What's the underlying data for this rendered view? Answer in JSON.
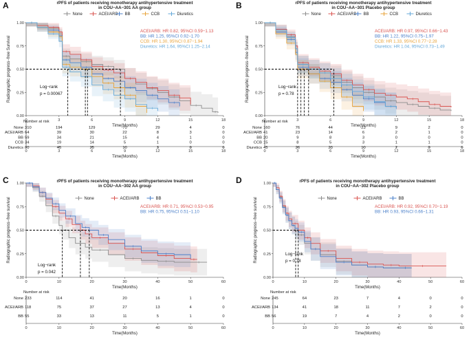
{
  "colors": {
    "None": "#8c8c8c",
    "ACEI/ARB": "#d9534f",
    "BB": "#4a7fc9",
    "CCB": "#e8a33a",
    "Diuretics": "#63a7d8"
  },
  "chart_data": [
    {
      "panel": "A",
      "type": "line",
      "title": "rPFS of patients receiving monotherapy antihypertensive treatment",
      "subtitle": "in COU−AA−301 AA group",
      "xlabel": "Time(Months)",
      "ylabel": "Radiographic progress−free Survival",
      "xlim": [
        0,
        18
      ],
      "xticks": [
        0,
        3,
        6,
        9,
        12,
        15,
        18
      ],
      "ylim": [
        0,
        1
      ],
      "yticks": [
        0.0,
        0.25,
        0.5,
        0.75,
        1.0
      ],
      "legend": [
        "None",
        "ACEI/ARB",
        "BB",
        "CCB",
        "Diuretics"
      ],
      "hr_text": [
        "ACEI/ARB: HR 0.82, 95%CI 0.59−1.13",
        "BB: HR 1.25, 95%CI 0.92−1.70",
        "CCB: HR 1.30, 95%CI 0.87−1.94",
        "Diuretics: HR 1.64, 95%CI 1.25−2.14"
      ],
      "logrank": [
        "Log−rank",
        "p = 0.00067"
      ],
      "medians": [
        3.8,
        5.4,
        5.6,
        8.6
      ],
      "series": [
        {
          "name": "None",
          "x": [
            0,
            1,
            2,
            3,
            3.3,
            4,
            5,
            6,
            7,
            8,
            9,
            10,
            11,
            12,
            13,
            14,
            15,
            16,
            17,
            17.5
          ],
          "y": [
            1,
            0.97,
            0.94,
            0.88,
            0.64,
            0.61,
            0.58,
            0.55,
            0.53,
            0.5,
            0.4,
            0.34,
            0.29,
            0.25,
            0.2,
            0.16,
            0.11,
            0.08,
            0.04,
            0.03
          ]
        },
        {
          "name": "ACEI/ARB",
          "x": [
            0,
            1,
            2,
            3,
            3.3,
            4,
            5,
            6,
            7,
            8,
            9,
            10,
            11,
            12,
            13,
            14,
            15
          ],
          "y": [
            1,
            0.97,
            0.95,
            0.9,
            0.69,
            0.66,
            0.6,
            0.53,
            0.49,
            0.46,
            0.4,
            0.36,
            0.3,
            0.27,
            0.22,
            0.19,
            0.12
          ]
        },
        {
          "name": "BB",
          "x": [
            0,
            1,
            2,
            3,
            3.3,
            4,
            5,
            6,
            7,
            8,
            9,
            10,
            11,
            12,
            13,
            14
          ],
          "y": [
            1,
            0.95,
            0.92,
            0.86,
            0.6,
            0.57,
            0.52,
            0.45,
            0.4,
            0.37,
            0.3,
            0.27,
            0.22,
            0.18,
            0.14,
            0.1
          ]
        },
        {
          "name": "CCB",
          "x": [
            0,
            1,
            2,
            3,
            3.3,
            4,
            5,
            6,
            7,
            8,
            9,
            10,
            11
          ],
          "y": [
            1,
            0.95,
            0.9,
            0.85,
            0.55,
            0.52,
            0.5,
            0.42,
            0.35,
            0.3,
            0.22,
            0.1,
            0.03
          ]
        },
        {
          "name": "Diuretics",
          "x": [
            0,
            1,
            2,
            3,
            3.3,
            4,
            5,
            6,
            7,
            8,
            9,
            10,
            11,
            12
          ],
          "y": [
            1,
            0.95,
            0.88,
            0.8,
            0.52,
            0.47,
            0.42,
            0.33,
            0.28,
            0.22,
            0.18,
            0.12,
            0.08,
            0.05
          ]
        }
      ],
      "risk_table": {
        "title": "Number at risk",
        "times": [
          0,
          3,
          6,
          9,
          12,
          15,
          18
        ],
        "rows": [
          {
            "name": "None",
            "values": [
              "310",
              "194",
              "129",
              "70",
              "29",
              "4",
              "0"
            ]
          },
          {
            "name": "ACEI/ARB",
            "values": [
              "64",
              "39",
              "30",
              "22",
              "8",
              "3",
              "0"
            ]
          },
          {
            "name": "BB",
            "values": [
              "59",
              "34",
              "21",
              "15",
              "4",
              "1",
              "0"
            ]
          },
          {
            "name": "CCB",
            "values": [
              "34",
              "19",
              "14",
              "5",
              "1",
              "0",
              "0"
            ]
          },
          {
            "name": "Diuretics",
            "values": [
              "80",
              "45",
              "25",
              "10",
              "3",
              "0",
              "0"
            ]
          }
        ]
      }
    },
    {
      "panel": "B",
      "type": "line",
      "title": "rPFS of patients receiving monotherapy antihypertensive treatment",
      "subtitle": "in COU−AA−301 Placebo group",
      "xlabel": "Time(Months)",
      "ylabel": "Radiographic progress−free Survival",
      "xlim": [
        0,
        18
      ],
      "xticks": [
        0,
        3,
        6,
        9,
        12,
        15,
        18
      ],
      "ylim": [
        0,
        1
      ],
      "yticks": [
        0.0,
        0.25,
        0.5,
        0.75,
        1.0
      ],
      "legend": [
        "None",
        "ACEI/ARB",
        "BB",
        "CCB",
        "Diuretics"
      ],
      "hr_text": [
        "ACEI/ARB: HR 0.97, 95%CI 0.66−1.43",
        "BB: HR 1.22, 95%CI 0.75−1.97",
        "CCB: HR 1.33, 95%CI 0.77−2.28",
        "Diuretics: HR 1.04, 95%CI 0.73−1.49"
      ],
      "logrank": [
        "Log−rank",
        "p = 0.78"
      ],
      "medians": [
        3.0,
        3.3,
        3.6,
        4.0,
        6.3
      ],
      "series": [
        {
          "name": "None",
          "x": [
            0,
            1,
            2,
            2.8,
            3,
            4,
            5,
            6,
            7,
            8,
            9,
            10,
            11,
            12,
            13,
            14,
            15,
            16,
            17
          ],
          "y": [
            1,
            0.93,
            0.85,
            0.72,
            0.55,
            0.5,
            0.46,
            0.43,
            0.36,
            0.3,
            0.25,
            0.2,
            0.16,
            0.14,
            0.12,
            0.1,
            0.08,
            0.06,
            0.05
          ]
        },
        {
          "name": "ACEI/ARB",
          "x": [
            0,
            1,
            2,
            2.8,
            3,
            4,
            5,
            6,
            7,
            8,
            9,
            10,
            11,
            12,
            13,
            14,
            15,
            16,
            17
          ],
          "y": [
            1,
            0.93,
            0.87,
            0.75,
            0.57,
            0.52,
            0.48,
            0.45,
            0.38,
            0.33,
            0.28,
            0.24,
            0.22,
            0.2,
            0.18,
            0.15,
            0.12,
            0.1,
            0.09
          ]
        },
        {
          "name": "BB",
          "x": [
            0,
            1,
            2,
            2.8,
            3,
            4,
            5,
            6,
            7,
            8,
            9,
            10,
            11,
            12
          ],
          "y": [
            1,
            0.9,
            0.82,
            0.68,
            0.52,
            0.45,
            0.4,
            0.36,
            0.28,
            0.22,
            0.18,
            0.14,
            0.1,
            0.08
          ]
        },
        {
          "name": "CCB",
          "x": [
            0,
            1,
            2,
            2.8,
            3,
            4,
            5,
            6,
            7,
            8,
            9
          ],
          "y": [
            1,
            0.88,
            0.78,
            0.66,
            0.5,
            0.45,
            0.37,
            0.3,
            0.2,
            0.1,
            0.05
          ]
        },
        {
          "name": "Diuretics",
          "x": [
            0,
            1,
            2,
            2.8,
            3,
            4,
            5,
            6,
            7,
            8,
            9,
            10,
            11,
            12
          ],
          "y": [
            1,
            0.92,
            0.84,
            0.72,
            0.55,
            0.5,
            0.46,
            0.4,
            0.33,
            0.26,
            0.2,
            0.15,
            0.1,
            0.07
          ]
        }
      ],
      "risk_table": {
        "title": "Number at risk",
        "times": [
          0,
          3,
          6,
          9,
          12,
          15,
          18
        ],
        "rows": [
          {
            "name": "None",
            "values": [
              "160",
              "76",
              "44",
              "23",
              "9",
              "2",
              "0"
            ]
          },
          {
            "name": "ACEI/ARB",
            "values": [
              "41",
              "23",
              "14",
              "6",
              "2",
              "1",
              "0"
            ]
          },
          {
            "name": "BB",
            "values": [
              "20",
              "9",
              "8",
              "3",
              "0",
              "0",
              "0"
            ]
          },
          {
            "name": "CCB",
            "values": [
              "15",
              "8",
              "5",
              "3",
              "1",
              "1",
              "0"
            ]
          },
          {
            "name": "Diuretics",
            "values": [
              "45",
              "26",
              "23",
              "10",
              "2",
              "0",
              "0"
            ]
          }
        ]
      }
    },
    {
      "panel": "C",
      "type": "line",
      "title": "rPFS of patients receiving monotherapy antihypertensive treatment",
      "subtitle": "in COU−AA−302 AA group",
      "xlabel": "Time(Months)",
      "ylabel": "Radiographic progress−free survival",
      "xlim": [
        0,
        60
      ],
      "xticks": [
        0,
        10,
        20,
        30,
        40,
        50,
        60
      ],
      "ylim": [
        0,
        1
      ],
      "yticks": [
        0.0,
        0.25,
        0.5,
        0.75,
        1.0
      ],
      "legend": [
        "None",
        "ACEI/ARB",
        "BB"
      ],
      "hr_text": [
        "ACEI/ARB: HR 0.71, 95%CI 0.53−0.95",
        "BB: HR 0.75, 95%CI 0.51−1.10"
      ],
      "logrank": [
        "Log−rank",
        "p = 0.042"
      ],
      "medians": [
        11,
        16.5,
        19.2
      ],
      "series": [
        {
          "name": "None",
          "x": [
            0,
            2,
            4,
            6,
            8,
            10,
            11,
            13,
            15,
            18,
            20,
            25,
            30,
            35,
            40,
            45,
            50,
            55
          ],
          "y": [
            1,
            0.95,
            0.86,
            0.76,
            0.65,
            0.55,
            0.5,
            0.42,
            0.36,
            0.32,
            0.29,
            0.24,
            0.2,
            0.18,
            0.17,
            0.16,
            0.16,
            0.16
          ]
        },
        {
          "name": "ACEI/ARB",
          "x": [
            0,
            2,
            4,
            6,
            8,
            10,
            12,
            14,
            16.5,
            18,
            20,
            25,
            30,
            35,
            40,
            45,
            50,
            52
          ],
          "y": [
            1,
            0.97,
            0.9,
            0.83,
            0.75,
            0.68,
            0.62,
            0.56,
            0.5,
            0.46,
            0.42,
            0.36,
            0.3,
            0.26,
            0.23,
            0.2,
            0.19,
            0.19
          ]
        },
        {
          "name": "BB",
          "x": [
            0,
            2,
            4,
            6,
            8,
            10,
            12,
            15,
            17,
            19.2,
            22,
            25,
            30,
            35,
            40,
            45,
            50
          ],
          "y": [
            1,
            0.96,
            0.9,
            0.84,
            0.78,
            0.71,
            0.65,
            0.57,
            0.53,
            0.5,
            0.45,
            0.4,
            0.33,
            0.28,
            0.25,
            0.24,
            0.2
          ]
        }
      ],
      "risk_table": {
        "title": "Number at risk",
        "times": [
          0,
          10,
          20,
          30,
          40,
          50,
          60
        ],
        "rows": [
          {
            "name": "None",
            "values": [
              "233",
              "114",
              "41",
              "20",
              "16",
              "1",
              "0"
            ]
          },
          {
            "name": "ACEI/ARB",
            "values": [
              "118",
              "75",
              "37",
              "27",
              "13",
              "4",
              "0"
            ]
          },
          {
            "name": "BB",
            "values": [
              "55",
              "33",
              "13",
              "11",
              "5",
              "1",
              "0"
            ]
          }
        ]
      }
    },
    {
      "panel": "D",
      "type": "line",
      "title": "rPFS of patients receiving monotherapy antihypertensive treatment",
      "subtitle": "in COU−AA−302 Placebo group",
      "xlabel": "Time(Months)",
      "ylabel": "Radiographic progress−free survival",
      "xlim": [
        0,
        60
      ],
      "xticks": [
        0,
        10,
        20,
        30,
        40,
        50,
        60
      ],
      "ylim": [
        0,
        1
      ],
      "yticks": [
        0.0,
        0.25,
        0.5,
        0.75,
        1.0
      ],
      "legend": [
        "None",
        "ACEI/ARB",
        "BB"
      ],
      "hr_text": [
        "ACEI/ARB: HR 0.92, 95%CI 0.70−1.19",
        "BB: HR 0.93, 95%CI 0.66−1.31"
      ],
      "logrank": [
        "Log−rank",
        "p = 0.78"
      ],
      "medians": [
        7.2,
        8.0
      ],
      "series": [
        {
          "name": "None",
          "x": [
            0,
            1,
            2,
            3,
            4,
            5,
            6,
            7,
            8,
            10,
            12,
            15,
            20,
            25,
            30,
            35,
            40,
            44
          ],
          "y": [
            1,
            0.93,
            0.85,
            0.75,
            0.66,
            0.6,
            0.55,
            0.5,
            0.45,
            0.36,
            0.3,
            0.24,
            0.17,
            0.13,
            0.11,
            0.1,
            0.1,
            0.1
          ]
        },
        {
          "name": "ACEI/ARB",
          "x": [
            0,
            1,
            2,
            3,
            4,
            5,
            6,
            8,
            10,
            12,
            15,
            20,
            25,
            30,
            35,
            40,
            45,
            50,
            55
          ],
          "y": [
            1,
            0.95,
            0.86,
            0.76,
            0.68,
            0.62,
            0.57,
            0.5,
            0.42,
            0.36,
            0.28,
            0.2,
            0.16,
            0.14,
            0.13,
            0.12,
            0.12,
            0.12,
            0.12
          ]
        },
        {
          "name": "BB",
          "x": [
            0,
            1,
            2,
            3,
            4,
            5,
            6,
            7,
            8,
            10,
            12,
            15,
            20,
            25,
            30,
            35,
            40,
            44
          ],
          "y": [
            1,
            0.93,
            0.84,
            0.74,
            0.66,
            0.6,
            0.55,
            0.52,
            0.48,
            0.38,
            0.3,
            0.22,
            0.16,
            0.13,
            0.11,
            0.1,
            0.1,
            0.1
          ]
        }
      ],
      "risk_table": {
        "title": "Number at risk",
        "times": [
          0,
          10,
          20,
          30,
          40,
          50,
          60
        ],
        "rows": [
          {
            "name": "None",
            "values": [
              "245",
              "64",
              "23",
              "7",
              "4",
              "0",
              "0"
            ]
          },
          {
            "name": "ACEI/ARB",
            "values": [
              "134",
              "41",
              "18",
              "11",
              "7",
              "2",
              "0"
            ]
          },
          {
            "name": "BB",
            "values": [
              "56",
              "19",
              "7",
              "4",
              "2",
              "0",
              "0"
            ]
          }
        ]
      }
    }
  ]
}
